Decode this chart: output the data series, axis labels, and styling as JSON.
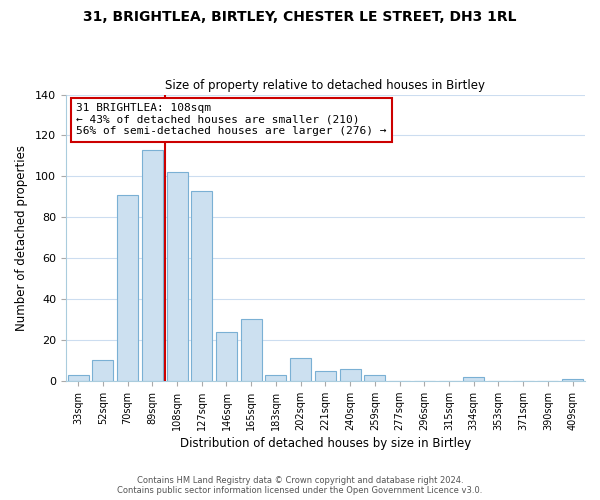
{
  "title_line1": "31, BRIGHTLEA, BIRTLEY, CHESTER LE STREET, DH3 1RL",
  "title_line2": "Size of property relative to detached houses in Birtley",
  "xlabel": "Distribution of detached houses by size in Birtley",
  "ylabel": "Number of detached properties",
  "bin_labels": [
    "33sqm",
    "52sqm",
    "70sqm",
    "89sqm",
    "108sqm",
    "127sqm",
    "146sqm",
    "165sqm",
    "183sqm",
    "202sqm",
    "221sqm",
    "240sqm",
    "259sqm",
    "277sqm",
    "296sqm",
    "315sqm",
    "334sqm",
    "353sqm",
    "371sqm",
    "390sqm",
    "409sqm"
  ],
  "bar_values": [
    3,
    10,
    91,
    113,
    102,
    93,
    24,
    30,
    3,
    11,
    5,
    6,
    3,
    0,
    0,
    0,
    2,
    0,
    0,
    0,
    1
  ],
  "bar_color": "#cce0f0",
  "bar_edge_color": "#7ab0d4",
  "vline_x": 3.5,
  "vline_color": "#cc0000",
  "ylim": [
    0,
    140
  ],
  "yticks": [
    0,
    20,
    40,
    60,
    80,
    100,
    120,
    140
  ],
  "annotation_text": "31 BRIGHTLEA: 108sqm\n← 43% of detached houses are smaller (210)\n56% of semi-detached houses are larger (276) →",
  "annotation_box_color": "#ffffff",
  "annotation_box_edge": "#cc0000",
  "footer_line1": "Contains HM Land Registry data © Crown copyright and database right 2024.",
  "footer_line2": "Contains public sector information licensed under the Open Government Licence v3.0.",
  "background_color": "#ffffff",
  "grid_color": "#ccddf0"
}
